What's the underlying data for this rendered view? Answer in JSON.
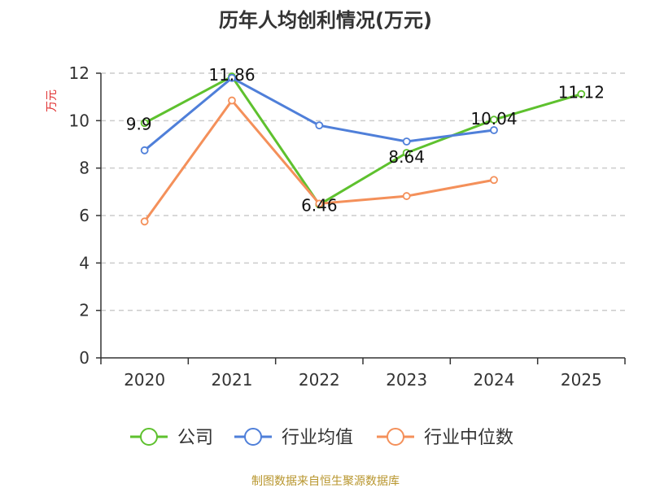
{
  "chart_data": {
    "type": "line",
    "title": "历年人均创利情况(万元)",
    "ylabel": "万元",
    "xlabel": "",
    "ylim": [
      0,
      12
    ],
    "yticks": [
      0,
      2,
      4,
      6,
      8,
      10,
      12
    ],
    "categories": [
      "2020",
      "2021",
      "2022",
      "2023",
      "2024",
      "2025"
    ],
    "grid": "horizontal-dashed",
    "legend_position": "bottom",
    "series": [
      {
        "name": "公司",
        "color": "#5ec12e",
        "values": [
          9.9,
          11.86,
          6.46,
          8.64,
          10.04,
          11.12
        ],
        "labels": [
          "9.9",
          "11.86",
          "6.46",
          "8.64",
          "10.04",
          "11.12"
        ]
      },
      {
        "name": "行业均值",
        "color": "#4f7fd9",
        "values": [
          8.75,
          11.8,
          9.8,
          9.12,
          9.6,
          null
        ]
      },
      {
        "name": "行业中位数",
        "color": "#f4905a",
        "values": [
          5.75,
          10.85,
          6.5,
          6.82,
          7.5,
          null
        ]
      }
    ],
    "source_text": "制图数据来自恒生聚源数据库"
  }
}
